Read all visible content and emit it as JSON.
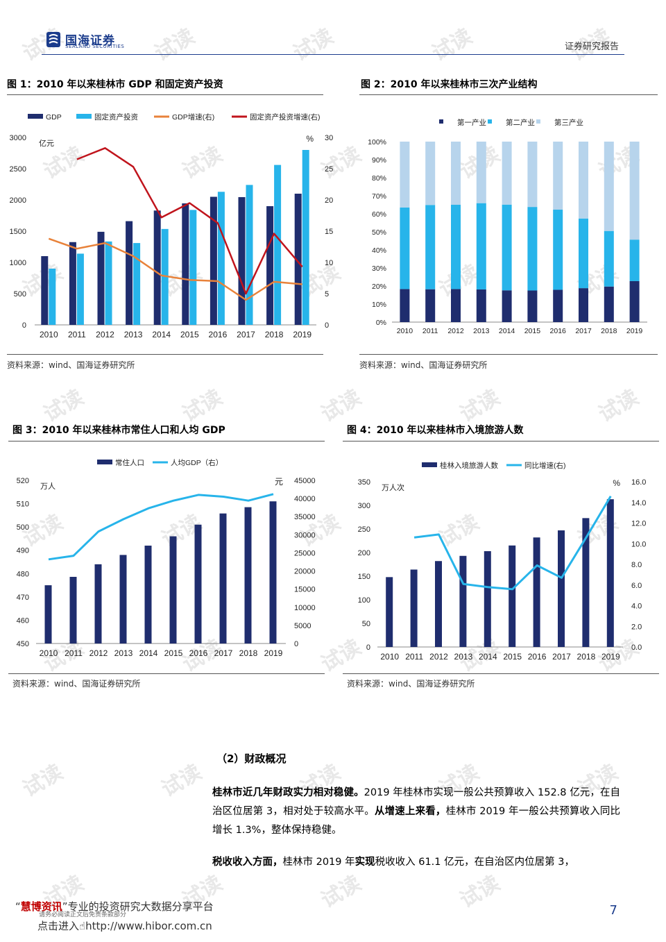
{
  "header": {
    "company_cn": "国海证券",
    "company_en": "SEALAND SECURITIES",
    "doc_type": "证券研究报告"
  },
  "watermark": "试读",
  "figures": [
    {
      "title": "图 1：2010 年以来桂林市 GDP 和固定资产投资",
      "source": "资料来源：wind、国海证券研究所"
    },
    {
      "title": "图 2：2010 年以来桂林市三次产业结构",
      "source": "资料来源：wind、国海证券研究所"
    },
    {
      "title": "图 3：2010 年以来桂林市常住人口和人均 GDP",
      "source": "资料来源：wind、国海证券研究所"
    },
    {
      "title": "图 4：2010 年以来桂林市入境旅游人数",
      "source": "资料来源：wind、国海证券研究所"
    }
  ],
  "chart_data": [
    {
      "type": "bar",
      "x": [
        "2010",
        "2011",
        "2012",
        "2013",
        "2014",
        "2015",
        "2016",
        "2017",
        "2018",
        "2019"
      ],
      "left_unit": "亿元",
      "right_unit": "%",
      "ylim": [
        0,
        3000
      ],
      "ylim_right": [
        0,
        30
      ],
      "yticks": [
        "0",
        "500",
        "1000",
        "1500",
        "2000",
        "2500",
        "3000"
      ],
      "yticks_right": [
        "0",
        "5",
        "10",
        "15",
        "20",
        "25",
        "30"
      ],
      "legend": "top",
      "colors": {
        "gdp": "#1f2d6e",
        "fai": "#27b4ea",
        "gdp_growth": "#e8823a",
        "fai_growth": "#c0141c"
      },
      "series": [
        {
          "name": "GDP",
          "kind": "bar",
          "axis": "left",
          "values": [
            1100,
            1325,
            1490,
            1660,
            1830,
            1945,
            2050,
            2045,
            1900,
            2100
          ]
        },
        {
          "name": "固定资产投资",
          "kind": "bar",
          "axis": "left",
          "values": [
            900,
            1140,
            1335,
            1310,
            1535,
            1840,
            2130,
            2240,
            2560,
            2800
          ]
        },
        {
          "name": "GDP增速(右)",
          "kind": "line",
          "axis": "right",
          "values": [
            13.8,
            12.2,
            13.1,
            11.0,
            7.9,
            7.2,
            7.0,
            4.0,
            6.9,
            6.5
          ]
        },
        {
          "name": "固定资产投资增速(右)",
          "kind": "line",
          "axis": "right",
          "values": [
            null,
            26.5,
            28.3,
            25.3,
            17.2,
            19.5,
            16.3,
            5.0,
            14.6,
            9.3
          ]
        }
      ]
    },
    {
      "type": "bar",
      "stacked": true,
      "x": [
        "2010",
        "2011",
        "2012",
        "2013",
        "2014",
        "2015",
        "2016",
        "2017",
        "2018",
        "2019"
      ],
      "ylim": [
        0,
        100
      ],
      "yticks": [
        "0%",
        "10%",
        "20%",
        "30%",
        "40%",
        "50%",
        "60%",
        "70%",
        "80%",
        "90%",
        "100%"
      ],
      "legend": "top",
      "colors": {
        "primary": "#1f2d6e",
        "secondary": "#27b4ea",
        "tertiary": "#b7d4ec"
      },
      "series": [
        {
          "name": "第一产业",
          "values": [
            18.3,
            18.2,
            18.3,
            18.1,
            17.6,
            17.5,
            17.9,
            18.8,
            19.7,
            22.7
          ]
        },
        {
          "name": "第二产业",
          "values": [
            45.2,
            46.7,
            46.7,
            47.8,
            47.5,
            46.3,
            44.4,
            38.6,
            30.8,
            23.0
          ]
        },
        {
          "name": "第三产业",
          "values": [
            36.5,
            35.1,
            35.0,
            34.1,
            34.9,
            36.2,
            37.7,
            42.6,
            49.5,
            54.3
          ]
        }
      ]
    },
    {
      "type": "bar",
      "x": [
        "2010",
        "2011",
        "2012",
        "2013",
        "2014",
        "2015",
        "2016",
        "2017",
        "2018",
        "2019"
      ],
      "left_unit": "万人",
      "right_unit": "元",
      "ylim": [
        450,
        520
      ],
      "ylim_right": [
        0,
        45000
      ],
      "yticks": [
        "450",
        "460",
        "470",
        "480",
        "490",
        "500",
        "510",
        "520"
      ],
      "yticks_right": [
        "0",
        "5000",
        "10000",
        "15000",
        "20000",
        "25000",
        "30000",
        "35000",
        "40000",
        "45000"
      ],
      "legend": "top",
      "colors": {
        "pop": "#1f2d6e",
        "gdp_pc": "#27b4ea"
      },
      "series": [
        {
          "name": "常住人口",
          "kind": "bar",
          "axis": "left",
          "values": [
            475,
            478.6,
            484,
            488,
            492,
            496,
            501,
            505.8,
            508.5,
            511
          ]
        },
        {
          "name": "人均GDP（右）",
          "kind": "line",
          "axis": "right",
          "values": [
            23200,
            24200,
            30900,
            34300,
            37300,
            39400,
            41000,
            40500,
            39400,
            41200
          ]
        }
      ]
    },
    {
      "type": "bar",
      "x": [
        "2010",
        "2011",
        "2012",
        "2013",
        "2014",
        "2015",
        "2016",
        "2017",
        "2018",
        "2019"
      ],
      "left_unit": "万人次",
      "right_unit": "%",
      "ylim": [
        0,
        350
      ],
      "ylim_right": [
        0,
        16
      ],
      "yticks": [
        "0",
        "50",
        "100",
        "150",
        "200",
        "250",
        "300",
        "350"
      ],
      "yticks_right": [
        "0.0",
        "2.0",
        "4.0",
        "6.0",
        "8.0",
        "10.0",
        "12.0",
        "14.0",
        "16.0"
      ],
      "legend": "top",
      "colors": {
        "tourists": "#1f2d6e",
        "growth": "#27b4ea"
      },
      "series": [
        {
          "name": "桂林入境旅游人数",
          "kind": "bar",
          "axis": "left",
          "values": [
            148,
            164,
            182,
            193,
            203,
            215,
            232,
            247,
            273,
            313
          ]
        },
        {
          "name": "同比增速(右)",
          "kind": "line",
          "axis": "right",
          "values": [
            null,
            10.6,
            10.9,
            6.1,
            5.8,
            5.6,
            7.9,
            6.7,
            10.6,
            14.6
          ]
        }
      ]
    }
  ],
  "section": {
    "title": "（2）财政概况",
    "p1_bold1": "桂林市近几年财政实力相对稳健。",
    "p1_text1": "2019 年桂林市实现一般公共预算收入 152.8 亿元，在自治区位居第 3，相对处于较高水平。",
    "p1_bold2": "从增速上来看，",
    "p1_text2": "桂林市 2019 年一般公共预算收入同比增长 1.3%，整体保持稳健。",
    "p2_bold1": "税收收入方面，",
    "p2_text1": "桂林市 2019 年",
    "p2_bold2": "实现",
    "p2_text2": "税收收入 61.1 亿元，在自治区内位居第 3，"
  },
  "footer": {
    "brand_quote_open": "“",
    "brand_name": "慧博资讯",
    "brand_rest": "”专业的投资研究大数据分享平台",
    "sub": "请务必阅读正文后免责条款部分",
    "link_prefix": "点击进入",
    "link": "http://www.hibor.com.cn",
    "page": "7"
  }
}
